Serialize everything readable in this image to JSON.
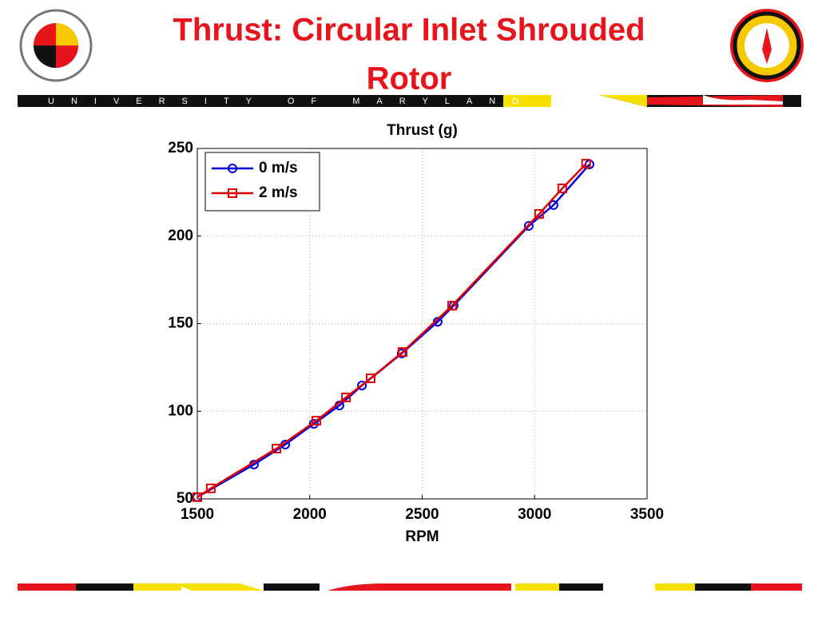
{
  "header": {
    "title": "Thrust: Circular Inlet Shrouded Rotor",
    "banner": "UNIVERSITY OF MARYLAND"
  },
  "chart_data": {
    "type": "line",
    "title": "Thrust (g)",
    "x_label": "RPM",
    "series": [
      {
        "name": "0 m/s",
        "color": "#0000e0",
        "marker": "circle",
        "x": [
          1500,
          1752,
          1891,
          2018,
          2132,
          2232,
          2409,
          2569,
          2640,
          2974,
          3084,
          3244
        ],
        "values": [
          51,
          69.6,
          81,
          92.8,
          103.3,
          114.7,
          133,
          151.1,
          160.3,
          205.8,
          217.7,
          240.9
        ]
      },
      {
        "name": "2 m/s",
        "color": "#e00000",
        "marker": "square",
        "x": [
          1500,
          1560,
          1852,
          2029,
          2161,
          2271,
          2413,
          2633,
          3020,
          3123,
          3229
        ],
        "values": [
          51,
          56,
          78.7,
          94.6,
          107.9,
          118.8,
          133.8,
          160.3,
          212.6,
          227.2,
          241.3
        ]
      }
    ],
    "xlim": [
      1500,
      3500
    ],
    "xticks": [
      1500,
      2000,
      2500,
      3000,
      3500
    ],
    "ylim": [
      50,
      250
    ],
    "yticks": [
      50,
      100,
      150,
      200,
      250
    ],
    "grid": true,
    "legend": "top-left"
  }
}
